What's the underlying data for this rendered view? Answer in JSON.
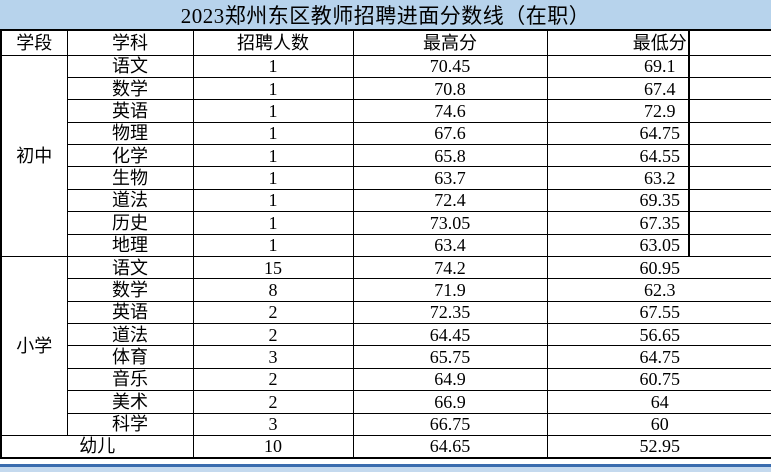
{
  "title": "2023郑州东区教师招聘进面分数线（在职）",
  "table": {
    "headers": [
      "学段",
      "学科",
      "招聘人数",
      "最高分",
      "最低分"
    ],
    "sections": [
      {
        "stage": "初中",
        "rows": [
          [
            "语文",
            "1",
            "70.45",
            "69.1"
          ],
          [
            "数学",
            "1",
            "70.8",
            "67.4"
          ],
          [
            "英语",
            "1",
            "74.6",
            "72.9"
          ],
          [
            "物理",
            "1",
            "67.6",
            "64.75"
          ],
          [
            "化学",
            "1",
            "65.8",
            "64.55"
          ],
          [
            "生物",
            "1",
            "63.7",
            "63.2"
          ],
          [
            "道法",
            "1",
            "72.4",
            "69.35"
          ],
          [
            "历史",
            "1",
            "73.05",
            "67.35"
          ],
          [
            "地理",
            "1",
            "63.4",
            "63.05"
          ]
        ]
      },
      {
        "stage": "小学",
        "rows": [
          [
            "语文",
            "15",
            "74.2",
            "60.95"
          ],
          [
            "数学",
            "8",
            "71.9",
            "62.3"
          ],
          [
            "英语",
            "2",
            "72.35",
            "67.55"
          ],
          [
            "道法",
            "2",
            "64.45",
            "56.65"
          ],
          [
            "体育",
            "3",
            "65.75",
            "64.75"
          ],
          [
            "音乐",
            "2",
            "64.9",
            "60.75"
          ],
          [
            "美术",
            "2",
            "66.9",
            "64"
          ],
          [
            "科学",
            "3",
            "66.75",
            "60"
          ]
        ]
      }
    ],
    "footer_row": [
      "幼儿",
      "10",
      "64.65",
      "52.95"
    ]
  },
  "colors": {
    "title_bar_bg": "#b7d3ec",
    "grid_line": "#000000",
    "bottom_dark_blue": "#3a6cae",
    "bottom_light_blue": "#c4d9ee"
  }
}
